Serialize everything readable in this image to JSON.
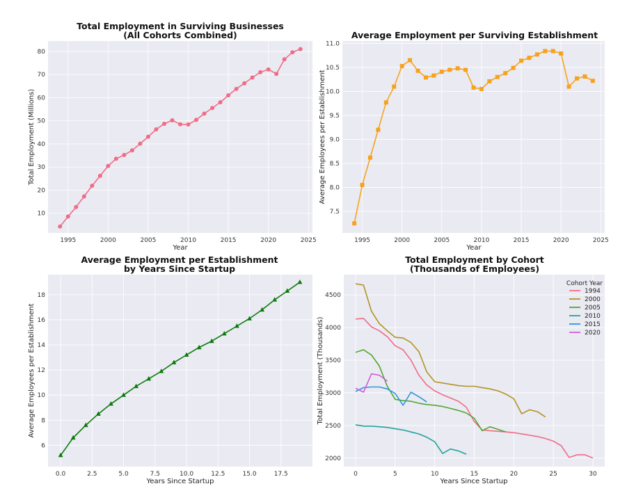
{
  "chart_data": [
    {
      "type": "line",
      "title": "Total Employment in Surviving Businesses",
      "subtitle": "(All Cohorts Combined)",
      "xlabel": "Year",
      "ylabel": "Total Employment (Millions)",
      "xlim": [
        1992.5,
        2025.5
      ],
      "ylim": [
        1.5,
        84.5
      ],
      "xticks": [
        1995,
        2000,
        2005,
        2010,
        2015,
        2020,
        2025
      ],
      "yticks": [
        10,
        20,
        30,
        40,
        50,
        60,
        70,
        80
      ],
      "grid": true,
      "marker": "circle",
      "color": "#f06c87",
      "series": [
        {
          "x": [
            1994,
            1995,
            1996,
            1997,
            1998,
            1999,
            2000,
            2001,
            2002,
            2003,
            2004,
            2005,
            2006,
            2007,
            2008,
            2009,
            2010,
            2011,
            2012,
            2013,
            2014,
            2015,
            2016,
            2017,
            2018,
            2019,
            2020,
            2021,
            2022,
            2023,
            2024
          ],
          "values": [
            4.3,
            8.6,
            12.7,
            17.3,
            21.9,
            26.2,
            30.5,
            33.6,
            35.2,
            37.2,
            40.1,
            43.1,
            46.3,
            48.7,
            50.2,
            48.5,
            48.4,
            50.4,
            53.1,
            55.5,
            58.0,
            61.0,
            63.8,
            66.2,
            68.7,
            71.0,
            72.2,
            70.3,
            76.6,
            79.6,
            81.0
          ]
        }
      ]
    },
    {
      "type": "line",
      "title": "Average Employment per Surviving Establishment",
      "xlabel": "Year",
      "ylabel": "Average Employees per Establishment",
      "xlim": [
        1992.5,
        2025.5
      ],
      "ylim": [
        7.05,
        11.05
      ],
      "xticks": [
        1995,
        2000,
        2005,
        2010,
        2015,
        2020,
        2025
      ],
      "yticks": [
        7.5,
        8.0,
        8.5,
        9.0,
        9.5,
        10.0,
        10.5,
        11.0
      ],
      "ytick_labels": [
        "7.5",
        "8.0",
        "8.5",
        "9.0",
        "9.5",
        "10.0",
        "10.5",
        "11.0"
      ],
      "grid": true,
      "marker": "square",
      "color": "#f7a21b",
      "series": [
        {
          "x": [
            1994,
            1995,
            1996,
            1997,
            1998,
            1999,
            2000,
            2001,
            2002,
            2003,
            2004,
            2005,
            2006,
            2007,
            2008,
            2009,
            2010,
            2011,
            2012,
            2013,
            2014,
            2015,
            2016,
            2017,
            2018,
            2019,
            2020,
            2021,
            2022,
            2023,
            2024
          ],
          "values": [
            7.25,
            8.05,
            8.62,
            9.2,
            9.77,
            10.1,
            10.53,
            10.65,
            10.43,
            10.29,
            10.33,
            10.41,
            10.45,
            10.48,
            10.45,
            10.08,
            10.05,
            10.21,
            10.3,
            10.38,
            10.49,
            10.64,
            10.7,
            10.77,
            10.84,
            10.84,
            10.79,
            10.1,
            10.27,
            10.31,
            10.22
          ]
        }
      ]
    },
    {
      "type": "line",
      "title": "Average Employment per Establishment",
      "subtitle": "by Years Since Startup",
      "xlabel": "Years Since Startup",
      "ylabel": "Average Employees per Establishment",
      "xlim": [
        -1.0,
        20.0
      ],
      "ylim": [
        4.3,
        19.6
      ],
      "xticks": [
        0,
        2.5,
        5,
        7.5,
        10,
        12.5,
        15,
        17.5
      ],
      "xtick_labels": [
        "0.0",
        "2.5",
        "5.0",
        "7.5",
        "10.0",
        "12.5",
        "15.0",
        "17.5"
      ],
      "yticks": [
        6,
        8,
        10,
        12,
        14,
        16,
        18
      ],
      "grid": true,
      "marker": "triangle",
      "color": "#0b7a0b",
      "series": [
        {
          "x": [
            0,
            1,
            2,
            3,
            4,
            5,
            6,
            7,
            8,
            9,
            10,
            11,
            12,
            13,
            14,
            15,
            16,
            17,
            18,
            19
          ],
          "values": [
            5.2,
            6.6,
            7.6,
            8.5,
            9.3,
            10.0,
            10.7,
            11.3,
            11.9,
            12.6,
            13.2,
            13.8,
            14.3,
            14.9,
            15.5,
            16.1,
            16.8,
            17.6,
            18.3,
            19.0
          ]
        }
      ]
    },
    {
      "type": "line",
      "title": "Total Employment by Cohort",
      "subtitle": "(Thousands of Employees)",
      "xlabel": "Years Since Startup",
      "ylabel": "Total Employment (Thousands)",
      "legend_title": "Cohort Year",
      "legend_position": "top-right",
      "xlim": [
        -1.5,
        31.5
      ],
      "ylim": [
        1870,
        4810
      ],
      "xticks": [
        0,
        5,
        10,
        15,
        20,
        25,
        30
      ],
      "yticks": [
        2000,
        2500,
        3000,
        3500,
        4000,
        4500
      ],
      "grid": true,
      "series": [
        {
          "name": "1994",
          "color": "#f06c87",
          "values": [
            4130,
            4140,
            4010,
            3950,
            3860,
            3720,
            3660,
            3500,
            3270,
            3120,
            3030,
            2970,
            2920,
            2870,
            2780,
            2560,
            2430,
            2420,
            2410,
            2400,
            2390,
            2370,
            2350,
            2330,
            2300,
            2260,
            2190,
            2010,
            2050,
            2050,
            2000
          ]
        },
        {
          "name": "2000",
          "color": "#b39323",
          "values": [
            4670,
            4650,
            4250,
            4060,
            3950,
            3850,
            3840,
            3770,
            3630,
            3320,
            3170,
            3150,
            3130,
            3110,
            3100,
            3100,
            3080,
            3060,
            3030,
            2980,
            2910,
            2680,
            2740,
            2710,
            2630
          ]
        },
        {
          "name": "2005",
          "color": "#50a62f",
          "values": [
            3620,
            3660,
            3580,
            3410,
            3100,
            2900,
            2880,
            2870,
            2840,
            2820,
            2810,
            2790,
            2760,
            2730,
            2690,
            2610,
            2420,
            2480,
            2440,
            2400
          ]
        },
        {
          "name": "2010",
          "color": "#1fa39a",
          "values": [
            2510,
            2490,
            2490,
            2480,
            2470,
            2450,
            2430,
            2400,
            2370,
            2320,
            2250,
            2070,
            2140,
            2110,
            2060
          ]
        },
        {
          "name": "2015",
          "color": "#2c97da",
          "values": [
            3020,
            3080,
            3090,
            3090,
            3060,
            2990,
            2810,
            3010,
            2940,
            2860
          ]
        },
        {
          "name": "2020",
          "color": "#d25bdb",
          "values": [
            3070,
            3010,
            3290,
            3270,
            3180
          ]
        }
      ]
    }
  ]
}
